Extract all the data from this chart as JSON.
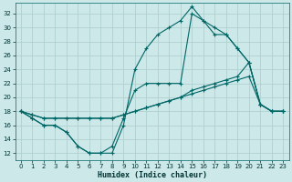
{
  "xlabel": "Humidex (Indice chaleur)",
  "bg_color": "#cce8e8",
  "grid_color": "#b0d0d0",
  "line_color": "#006666",
  "xlim": [
    -0.5,
    23.5
  ],
  "ylim": [
    11,
    33.5
  ],
  "xticks": [
    0,
    1,
    2,
    3,
    4,
    5,
    6,
    7,
    8,
    9,
    10,
    11,
    12,
    13,
    14,
    15,
    16,
    17,
    18,
    19,
    20,
    21,
    22,
    23
  ],
  "yticks": [
    12,
    14,
    16,
    18,
    20,
    22,
    24,
    26,
    28,
    30,
    32
  ],
  "line1_x": [
    0,
    1,
    2,
    3,
    4,
    5,
    6,
    7,
    8,
    9,
    10,
    11,
    12,
    13,
    14,
    15,
    16,
    17,
    18,
    19,
    20,
    21,
    22,
    23
  ],
  "line1_y": [
    18,
    17,
    16,
    16,
    15,
    13,
    12,
    12,
    12,
    16,
    24,
    27,
    29,
    30,
    31,
    33,
    31,
    29,
    29,
    27,
    25,
    19,
    18,
    18
  ],
  "line2_x": [
    0,
    1,
    2,
    3,
    4,
    5,
    6,
    7,
    8,
    9,
    10,
    11,
    12,
    13,
    14,
    15,
    16,
    17,
    18,
    19,
    20,
    21,
    22,
    23
  ],
  "line2_y": [
    18,
    17,
    16,
    16,
    15,
    13,
    12,
    12,
    13,
    17,
    21,
    22,
    22,
    22,
    22,
    32,
    31,
    30,
    29,
    27,
    25,
    19,
    18,
    18
  ],
  "line3_x": [
    0,
    1,
    2,
    3,
    4,
    5,
    6,
    7,
    8,
    9,
    10,
    11,
    12,
    13,
    14,
    15,
    16,
    17,
    18,
    19,
    20,
    21,
    22,
    23
  ],
  "line3_y": [
    18,
    17.5,
    17,
    17,
    17,
    17,
    17,
    17,
    17,
    17.5,
    18,
    18.5,
    19,
    19.5,
    20,
    21,
    21.5,
    22,
    22.5,
    23,
    25,
    19,
    18,
    18
  ],
  "line4_x": [
    0,
    1,
    2,
    3,
    4,
    5,
    6,
    7,
    8,
    9,
    10,
    11,
    12,
    13,
    14,
    15,
    16,
    17,
    18,
    19,
    20,
    21,
    22,
    23
  ],
  "line4_y": [
    18,
    17.5,
    17,
    17,
    17,
    17,
    17,
    17,
    17,
    17.5,
    18,
    18.5,
    19,
    19.5,
    20,
    20.5,
    21,
    21.5,
    22,
    22.5,
    23,
    19,
    18,
    18
  ]
}
